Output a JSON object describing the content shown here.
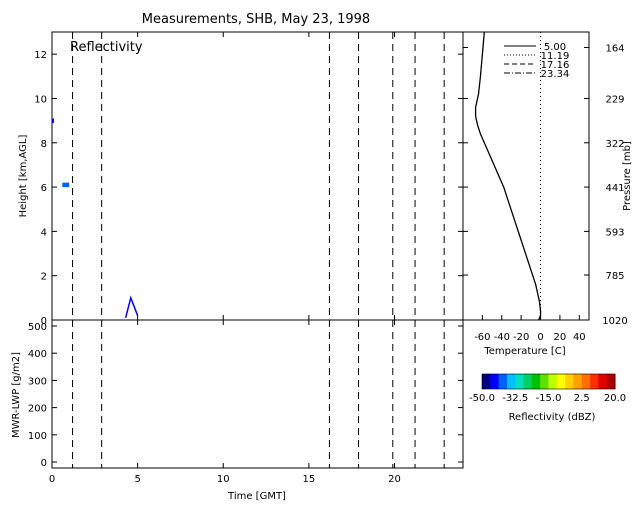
{
  "title": "Measurements, SHB, May 23, 1998",
  "colors": {
    "axis": "#000000",
    "background": "#ffffff",
    "echo_green": "#00a060",
    "echo_teal": "#008080",
    "echo_blue": "#0060d0"
  },
  "chart_data": [
    {
      "id": "reflectivity",
      "type": "heatmap",
      "panel_label": "Reflectivity",
      "xlabel": "",
      "ylabel": "Height [km,AGL]",
      "xlim": [
        0,
        24
      ],
      "ylim": [
        0,
        13
      ],
      "xticks": [
        0,
        5,
        10,
        15,
        20
      ],
      "yticks": [
        0,
        2,
        4,
        6,
        8,
        10,
        12
      ],
      "tick_labels_x": [],
      "tick_labels_y": [
        "0",
        "2",
        "4",
        "6",
        "8",
        "10",
        "12"
      ],
      "sounding_times": [
        1.2,
        2.9,
        16.2,
        17.9,
        19.9,
        21.2,
        22.9
      ],
      "echoes": [
        {
          "x0": 0.0,
          "x1": 0.1,
          "y0": 8.9,
          "y1": 9.1,
          "dbz": -45,
          "shape": "rect"
        },
        {
          "x0": 0.6,
          "x1": 1.0,
          "y0": 6.0,
          "y1": 6.2,
          "dbz": -40,
          "shape": "rect"
        },
        {
          "points": [
            [
              4.3,
              0.1
            ],
            [
              4.6,
              1.0
            ],
            [
              4.8,
              0.6
            ],
            [
              5.0,
              0.2
            ]
          ],
          "dbz": -45,
          "shape": "line"
        }
      ]
    },
    {
      "id": "lwp",
      "type": "line",
      "xlabel": "Time [GMT]",
      "ylabel": "MWR-LWP [g/m2]",
      "xlim": [
        0,
        24
      ],
      "ylim": [
        0,
        500
      ],
      "xticks": [
        0,
        5,
        10,
        15,
        20
      ],
      "yticks": [
        0,
        100,
        200,
        300,
        400,
        500
      ],
      "tick_labels_x": [
        "0",
        "5",
        "10",
        "15",
        "20"
      ],
      "tick_labels_y": [
        "0",
        "100",
        "200",
        "300",
        "400",
        "500"
      ],
      "sounding_times": [
        1.2,
        2.9,
        16.2,
        17.9,
        19.9,
        21.2,
        22.9
      ],
      "series": []
    },
    {
      "id": "temperature",
      "type": "line",
      "xlabel": "Temperature [C]",
      "ylabel_right": "Pressure [mb]",
      "xlim": [
        -80,
        50
      ],
      "ylim_height": [
        0,
        13
      ],
      "xticks": [
        -60,
        -40,
        -20,
        0,
        20,
        40
      ],
      "tick_labels_x": [
        "-60",
        "-40",
        "-20",
        "0",
        "20",
        "40"
      ],
      "pressure_ticks": [
        {
          "height": 0,
          "label": "1020"
        },
        {
          "height": 2.03,
          "label": "785"
        },
        {
          "height": 4.0,
          "label": "593"
        },
        {
          "height": 6.0,
          "label": "441"
        },
        {
          "height": 8.0,
          "label": "322"
        },
        {
          "height": 10.0,
          "label": "229"
        },
        {
          "height": 12.3,
          "label": "164"
        }
      ],
      "legend": [
        "5.00",
        "11.19",
        "17.16",
        "23.34"
      ],
      "legend_styles": [
        "solid",
        "dotted",
        "dashed",
        "dashdot"
      ],
      "zero_line": 0,
      "profile": {
        "temperature": [
          -2,
          0,
          0,
          -1,
          -3,
          -5,
          -8,
          -11,
          -14,
          -17,
          -20,
          -23,
          -26,
          -29,
          -32,
          -35,
          -38,
          -42,
          -46,
          -50,
          -54,
          -58,
          -62,
          -65,
          -67,
          -67,
          -64,
          -62,
          -60,
          -58
        ],
        "height": [
          0,
          0.2,
          0.4,
          0.8,
          1.2,
          1.6,
          2.0,
          2.4,
          2.8,
          3.2,
          3.6,
          4.0,
          4.4,
          4.8,
          5.2,
          5.6,
          6.0,
          6.4,
          6.8,
          7.2,
          7.6,
          8.0,
          8.4,
          8.8,
          9.2,
          9.6,
          10.2,
          11.0,
          12.0,
          13.0
        ]
      }
    }
  ],
  "colorbar": {
    "label": "Reflectivity (dBZ)",
    "min": -50.0,
    "max": 20.0,
    "tick_labels": [
      "-50.0",
      "-32.5",
      "-15.0",
      "2.5",
      "20.0"
    ],
    "colors": [
      "#000080",
      "#0000ff",
      "#0060ff",
      "#00c0ff",
      "#00e0c0",
      "#00d060",
      "#00c000",
      "#60e000",
      "#c0ff00",
      "#ffff00",
      "#ffd000",
      "#ffa000",
      "#ff7000",
      "#ff3000",
      "#e00000",
      "#b00000"
    ]
  }
}
